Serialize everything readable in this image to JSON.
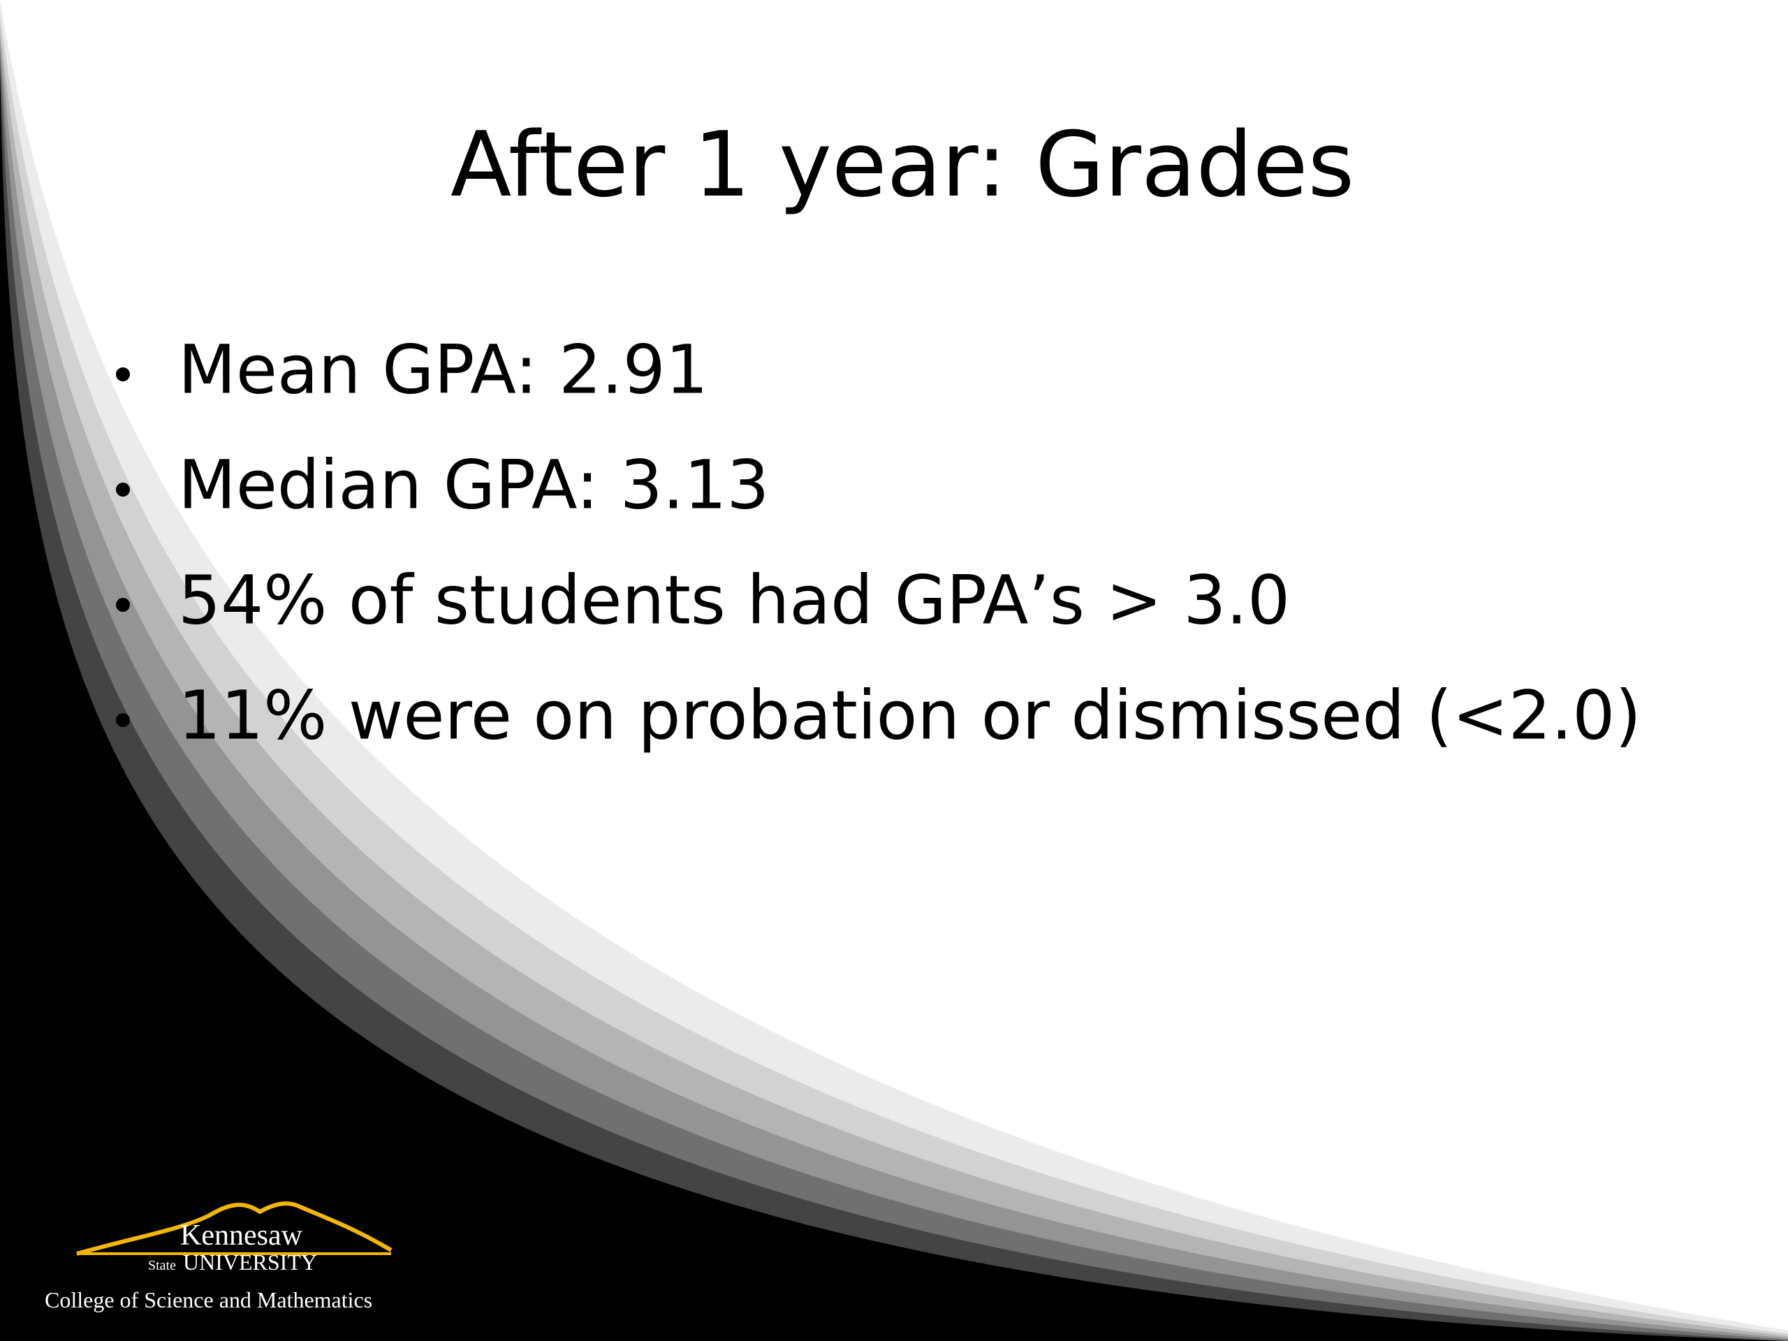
{
  "slide": {
    "title": "After 1 year: Grades",
    "bullets": [
      "Mean GPA: 2.91",
      "Median GPA: 3.13",
      "54% of students had GPA’s > 3.0",
      "11% were on probation or dismissed (<2.0)"
    ],
    "logo": {
      "name_line1": "Kennesaw",
      "name_state": "State",
      "name_university": "UNIVERSITY",
      "college": "College of Science and Mathematics"
    }
  }
}
